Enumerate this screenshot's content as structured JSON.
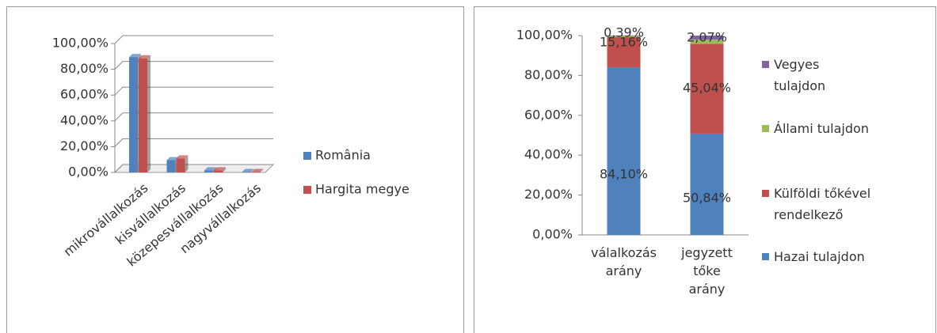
{
  "chart_data": [
    {
      "type": "bar3d",
      "categories": [
        "mikrovállalkozás",
        "kisvállalkozás",
        "közepesvállalkozás",
        "nagyvállalkozás"
      ],
      "series": [
        {
          "name": "România",
          "color": "#4f81bd",
          "values": [
            89.5,
            9.5,
            1.6,
            0.3
          ]
        },
        {
          "name": "Hargita megye",
          "color": "#c0504d",
          "values": [
            88.5,
            10.8,
            1.6,
            0.3
          ]
        }
      ],
      "ylim": [
        0,
        100
      ],
      "yticks": [
        {
          "value": 0,
          "label": "0,00%"
        },
        {
          "value": 20,
          "label": "20,00%"
        },
        {
          "value": 40,
          "label": "40,00%"
        },
        {
          "value": 60,
          "label": "60,00%"
        },
        {
          "value": 80,
          "label": "80,00%"
        },
        {
          "value": 100,
          "label": "100,00%"
        }
      ],
      "grid": true,
      "legend": "right"
    },
    {
      "type": "stacked_bar",
      "categories": [
        "válalkozás arány",
        "jegyzett tőke arány"
      ],
      "series": [
        {
          "name": "Hazai tulajdon",
          "color": "#4f81bd",
          "values": [
            84.1,
            50.84
          ],
          "value_labels": [
            "84,10%",
            "50,84%"
          ]
        },
        {
          "name": "Külföldi tőkével rendelkező",
          "color": "#c0504d",
          "values": [
            15.16,
            45.04
          ],
          "value_labels": [
            "15,16%",
            "45,04%"
          ]
        },
        {
          "name": "Állami tulajdon",
          "color": "#9bbb59",
          "values": [
            0.39,
            2.07
          ],
          "value_labels": [
            "0,39%",
            "2,07%"
          ]
        },
        {
          "name": "Vegyes tulajdon",
          "color": "#8064a2",
          "values": [
            0.35,
            2.05
          ]
        }
      ],
      "ylim": [
        0,
        100
      ],
      "yticks": [
        {
          "value": 0,
          "label": "0,00%"
        },
        {
          "value": 20,
          "label": "20,00%"
        },
        {
          "value": 40,
          "label": "40,00%"
        },
        {
          "value": 60,
          "label": "60,00%"
        },
        {
          "value": 80,
          "label": "80,00%"
        },
        {
          "value": 100,
          "label": "100,00%"
        }
      ],
      "grid": false,
      "legend": "right"
    }
  ]
}
